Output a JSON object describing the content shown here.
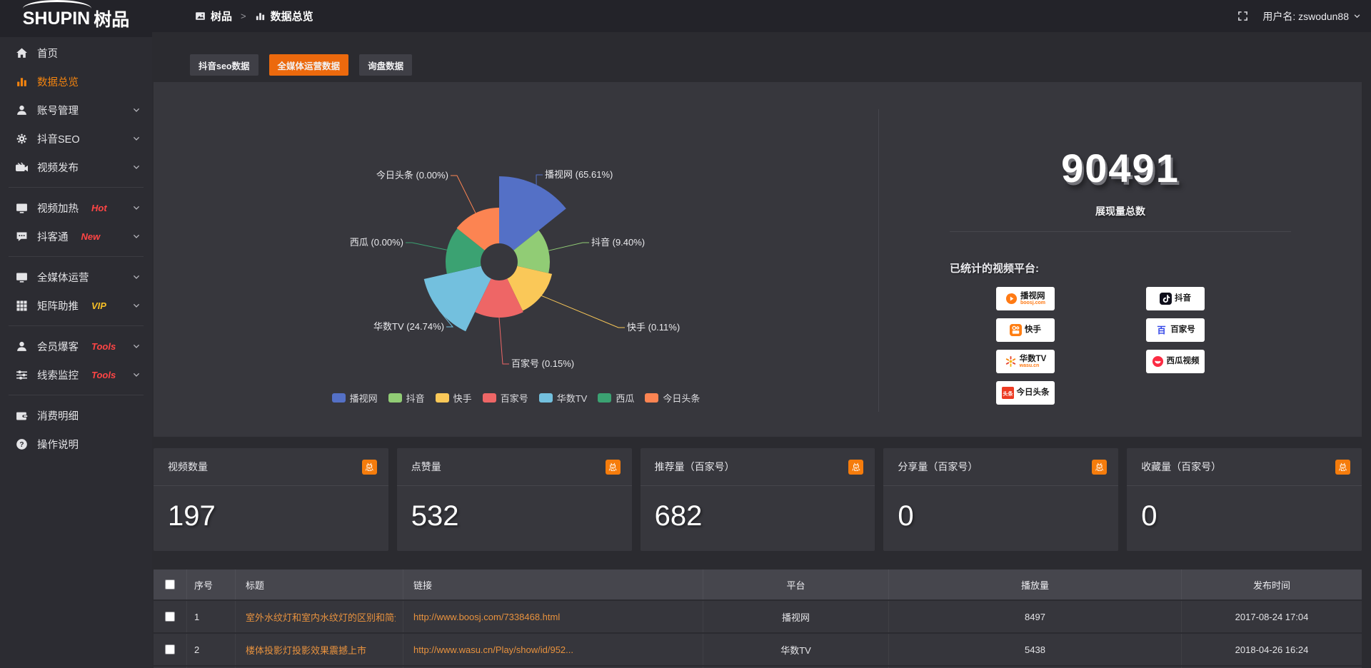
{
  "brand": {
    "logo_en": "SHUPIN",
    "logo_cn": "树品"
  },
  "topbar": {
    "breadcrumb_root": "树品",
    "breadcrumb_sep": ">",
    "breadcrumb_current": "数据总览",
    "username": "用户名: zswodun88"
  },
  "sidebar": {
    "items": [
      {
        "slug": "home",
        "icon": "home-icon",
        "label": "首页"
      },
      {
        "slug": "data-overview",
        "icon": "bar-chart-icon",
        "label": "数据总览",
        "active": true
      },
      {
        "slug": "account-management",
        "icon": "user-icon",
        "label": "账号管理",
        "expandable": true
      },
      {
        "slug": "douyin-seo",
        "icon": "gear-icon",
        "label": "抖音SEO",
        "expandable": true
      },
      {
        "slug": "video-publish",
        "icon": "camcorder-icon",
        "label": "视频发布",
        "expandable": true,
        "divider_after": true
      },
      {
        "slug": "video-heating",
        "icon": "monitor-icon",
        "label": "视频加热",
        "tag": "Hot",
        "tag_color": "#ff4545",
        "expandable": true
      },
      {
        "slug": "douketong",
        "icon": "chat-icon",
        "label": "抖客通",
        "tag": "New",
        "tag_color": "#ff4545",
        "expandable": true,
        "divider_after": true
      },
      {
        "slug": "omni-media-operation",
        "icon": "display-icon",
        "label": "全媒体运营",
        "expandable": true
      },
      {
        "slug": "matrix-boost",
        "icon": "grid-icon",
        "label": "矩阵助推",
        "tag": "VIP",
        "tag_color": "#f6bf26",
        "expandable": true,
        "divider_after": true
      },
      {
        "slug": "member-baoke",
        "icon": "person-icon",
        "label": "会员爆客",
        "tag": "Tools",
        "tag_color": "#ff4545",
        "expandable": true
      },
      {
        "slug": "lead-monitoring",
        "icon": "sliders-icon",
        "label": "线索监控",
        "tag": "Tools",
        "tag_color": "#ff4545",
        "expandable": true,
        "divider_after": true
      },
      {
        "slug": "consumption-details",
        "icon": "wallet-icon",
        "label": "消费明细"
      },
      {
        "slug": "operation-guide",
        "icon": "question-icon",
        "label": "操作说明"
      }
    ]
  },
  "tabs": [
    {
      "slug": "douyin-seo-data",
      "label": "抖音seo数据",
      "active": false
    },
    {
      "slug": "omni-media-data",
      "label": "全媒体运营数据",
      "active": true
    },
    {
      "slug": "inquiry-data",
      "label": "询盘数据",
      "active": false
    }
  ],
  "chart_data": {
    "type": "pie",
    "variant": "nightingale-rose",
    "legend_position": "bottom",
    "center": [
      484,
      252
    ],
    "inner_radius": 26,
    "label_format": "{name} ({pct}%)",
    "series": [
      {
        "slug": "boosj",
        "name": "播视网",
        "pct": 65.61,
        "color": "#5470c6",
        "radius": 120,
        "label": {
          "x": 548,
          "y": 130,
          "side": "right"
        }
      },
      {
        "slug": "douyin",
        "name": "抖音",
        "pct": 9.4,
        "color": "#91cc75",
        "radius": 71,
        "label": {
          "x": 613,
          "y": 225,
          "side": "right"
        }
      },
      {
        "slug": "kuaishou",
        "name": "快手",
        "pct": 0.11,
        "color": "#fac858",
        "radius": 76,
        "label": {
          "x": 663,
          "y": 344,
          "side": "right"
        }
      },
      {
        "slug": "baijiahao",
        "name": "百家号",
        "pct": 0.15,
        "color": "#ee6666",
        "radius": 78,
        "label": {
          "x": 501,
          "y": 395,
          "side": "right"
        }
      },
      {
        "slug": "wasu-tv",
        "name": "华数TV",
        "pct": 24.74,
        "color": "#73c0de",
        "radius": 108,
        "label": {
          "x": 407,
          "y": 343,
          "side": "left"
        }
      },
      {
        "slug": "xigua",
        "name": "西瓜",
        "pct": 0.0,
        "color": "#3ba272",
        "radius": 75,
        "label": {
          "x": 350,
          "y": 225,
          "side": "left"
        }
      },
      {
        "slug": "toutiao",
        "name": "今日头条",
        "pct": 0.0,
        "color": "#fc8452",
        "radius": 76,
        "label": {
          "x": 413,
          "y": 131,
          "side": "left"
        }
      }
    ]
  },
  "summary": {
    "total_value": "90491",
    "total_label": "展现量总数",
    "platforms_label": "已统计的视频平台:",
    "badges_left": [
      {
        "slug": "boosj",
        "name": "播视网",
        "sub": "boosj.com",
        "icon": "boosj-logo"
      },
      {
        "slug": "kuaishou",
        "name": "快手",
        "icon": "kuaishou-logo"
      },
      {
        "slug": "wasu-tv",
        "name": "华数TV",
        "sub": "wasu.cn",
        "icon": "wasu-logo"
      },
      {
        "slug": "toutiao",
        "name": "今日头条",
        "icon": "toutiao-logo"
      }
    ],
    "badges_right": [
      {
        "slug": "douyin",
        "name": "抖音",
        "icon": "douyin-logo"
      },
      {
        "slug": "baijiahao",
        "name": "百家号",
        "icon": "baijiahao-logo"
      },
      {
        "slug": "xigua",
        "name": "西瓜视频",
        "icon": "xigua-logo"
      }
    ]
  },
  "stat_cards": [
    {
      "slug": "video-count",
      "title": "视频数量",
      "badge": "总",
      "value": "197"
    },
    {
      "slug": "like-count",
      "title": "点赞量",
      "badge": "总",
      "value": "532"
    },
    {
      "slug": "recommend-count",
      "title": "推荐量（百家号）",
      "badge": "总",
      "value": "682"
    },
    {
      "slug": "share-count",
      "title": "分享量（百家号）",
      "badge": "总",
      "value": "0"
    },
    {
      "slug": "favorite-count",
      "title": "收藏量（百家号）",
      "badge": "总",
      "value": "0"
    }
  ],
  "table": {
    "headers": [
      "序号",
      "标题",
      "链接",
      "平台",
      "播放量",
      "发布时间"
    ],
    "rows": [
      {
        "index": "1",
        "title": "室外水纹灯和室内水纹灯的区别和简介",
        "link": "http://www.boosj.com/7338468.html",
        "platform": "播视网",
        "plays": "8497",
        "time": "2017-08-24 17:04"
      },
      {
        "index": "2",
        "title": "楼体投影灯投影效果震撼上市",
        "link": "http://www.wasu.cn/Play/show/id/952...",
        "platform": "华数TV",
        "plays": "5438",
        "time": "2018-04-26 16:24"
      }
    ]
  },
  "colors": {
    "accent_orange": "#ec690d",
    "badge_orange": "#f57c0c",
    "link_orange": "#e8923e",
    "tag_red": "#ff4545",
    "tag_gold": "#f6bf26",
    "active_menu": "#f2830f"
  }
}
